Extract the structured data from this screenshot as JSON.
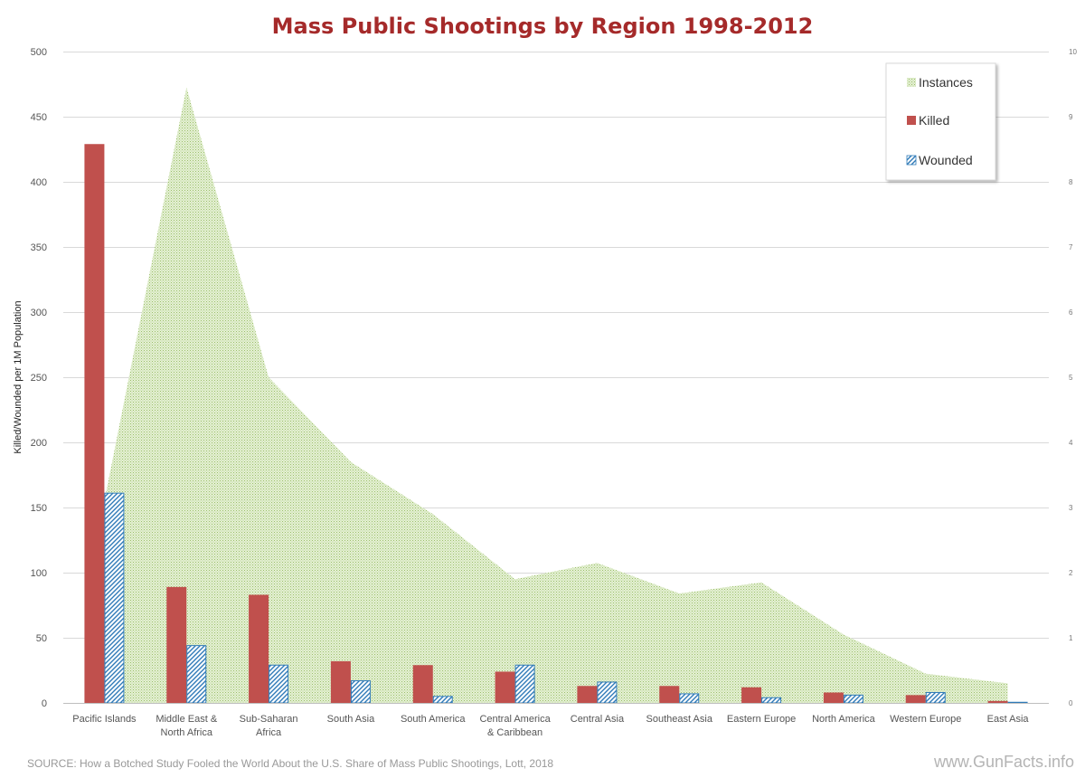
{
  "chart_data": {
    "type": "bar",
    "title": "Mass Public Shootings by Region 1998-2012",
    "ylabel": "Killed/Wounded per 1M Population",
    "ylabel_right": "",
    "ylim": [
      0,
      500
    ],
    "y_ticks": [
      0,
      50,
      100,
      150,
      200,
      250,
      300,
      350,
      400,
      450,
      500
    ],
    "y2lim": [
      0,
      10
    ],
    "y2_ticks": [
      0,
      1,
      2,
      3,
      4,
      5,
      6,
      7,
      8,
      9,
      10
    ],
    "categories": [
      [
        "Pacific Islands"
      ],
      [
        "Middle East &",
        "North Africa"
      ],
      [
        "Sub-Saharan",
        "Africa"
      ],
      [
        "South Asia"
      ],
      [
        "South America"
      ],
      [
        "Central America",
        "& Caribbean"
      ],
      [
        "Central Asia"
      ],
      [
        "Southeast Asia"
      ],
      [
        "Eastern Europe"
      ],
      [
        "North America"
      ],
      [
        "Western Europe"
      ],
      [
        "East Asia"
      ]
    ],
    "series": [
      {
        "name": "Instances",
        "type": "area",
        "axis": "right",
        "color": "#a9c97e",
        "values": [
          3.1,
          9.45,
          5.0,
          3.7,
          2.9,
          1.9,
          2.15,
          1.68,
          1.85,
          1.05,
          0.45,
          0.3
        ]
      },
      {
        "name": "Killed",
        "type": "bar",
        "axis": "left",
        "color": "#c0504d",
        "values": [
          429,
          89,
          83,
          32,
          29,
          24,
          13,
          13,
          12,
          8,
          6,
          1.5
        ]
      },
      {
        "name": "Wounded",
        "type": "bar",
        "axis": "left",
        "color": "#2f7ab8",
        "values": [
          161,
          44,
          29,
          17,
          5,
          29,
          16,
          7,
          4,
          6,
          8,
          0.5
        ]
      }
    ],
    "legend": {
      "position": "top-right",
      "entries": [
        "Instances",
        "Killed",
        "Wounded"
      ]
    },
    "grid": true
  },
  "footer": {
    "source": "SOURCE: How a Botched Study Fooled the World About the U.S. Share of Mass Public Shootings, Lott, 2018",
    "brand": "www.GunFacts.info"
  }
}
